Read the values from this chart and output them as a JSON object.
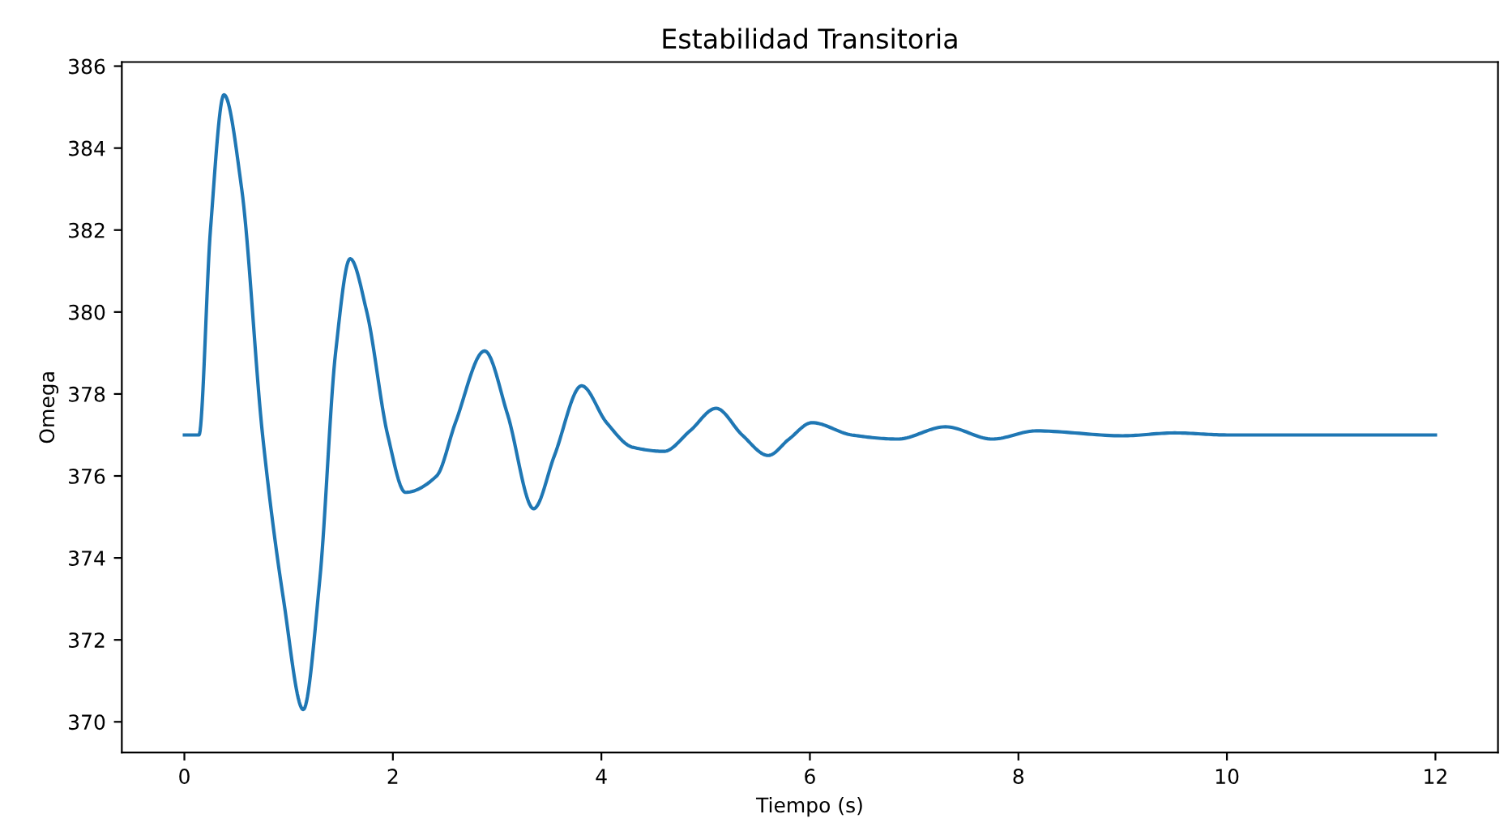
{
  "chart_data": {
    "type": "line",
    "title": "Estabilidad Transitoria",
    "xlabel": "Tiempo (s)",
    "ylabel": "Omega",
    "x": [
      0,
      0.14,
      0.25,
      0.38,
      0.55,
      0.75,
      0.95,
      1.14,
      1.3,
      1.45,
      1.59,
      1.75,
      1.95,
      2.12,
      2.42,
      2.6,
      2.88,
      3.1,
      3.35,
      3.55,
      3.81,
      4.05,
      4.3,
      4.6,
      4.85,
      5.1,
      5.35,
      5.6,
      5.8,
      6.02,
      6.4,
      6.84,
      7.3,
      7.75,
      8.17,
      9.0,
      9.5,
      10.0,
      11.0,
      12.0
    ],
    "series": [
      {
        "color": "#1f77b4",
        "values": [
          377,
          377,
          382,
          385.3,
          383,
          377,
          373,
          370.3,
          373.5,
          379,
          381.3,
          380,
          377,
          375.6,
          376.0,
          377.3,
          379.05,
          377.5,
          375.2,
          376.5,
          378.2,
          377.3,
          376.7,
          376.6,
          377.1,
          377.65,
          377.0,
          376.5,
          376.9,
          377.3,
          377.0,
          376.9,
          377.2,
          376.9,
          377.1,
          376.98,
          377.05,
          377.0,
          377.0,
          377.0
        ]
      }
    ],
    "xlim": [
      -0.6,
      12.6
    ],
    "ylim": [
      369.25,
      386.1
    ],
    "xticks": [
      0,
      2,
      4,
      6,
      8,
      10,
      12
    ],
    "yticks": [
      370,
      372,
      374,
      376,
      378,
      380,
      382,
      384,
      386
    ],
    "grid": false,
    "legend": false
  }
}
